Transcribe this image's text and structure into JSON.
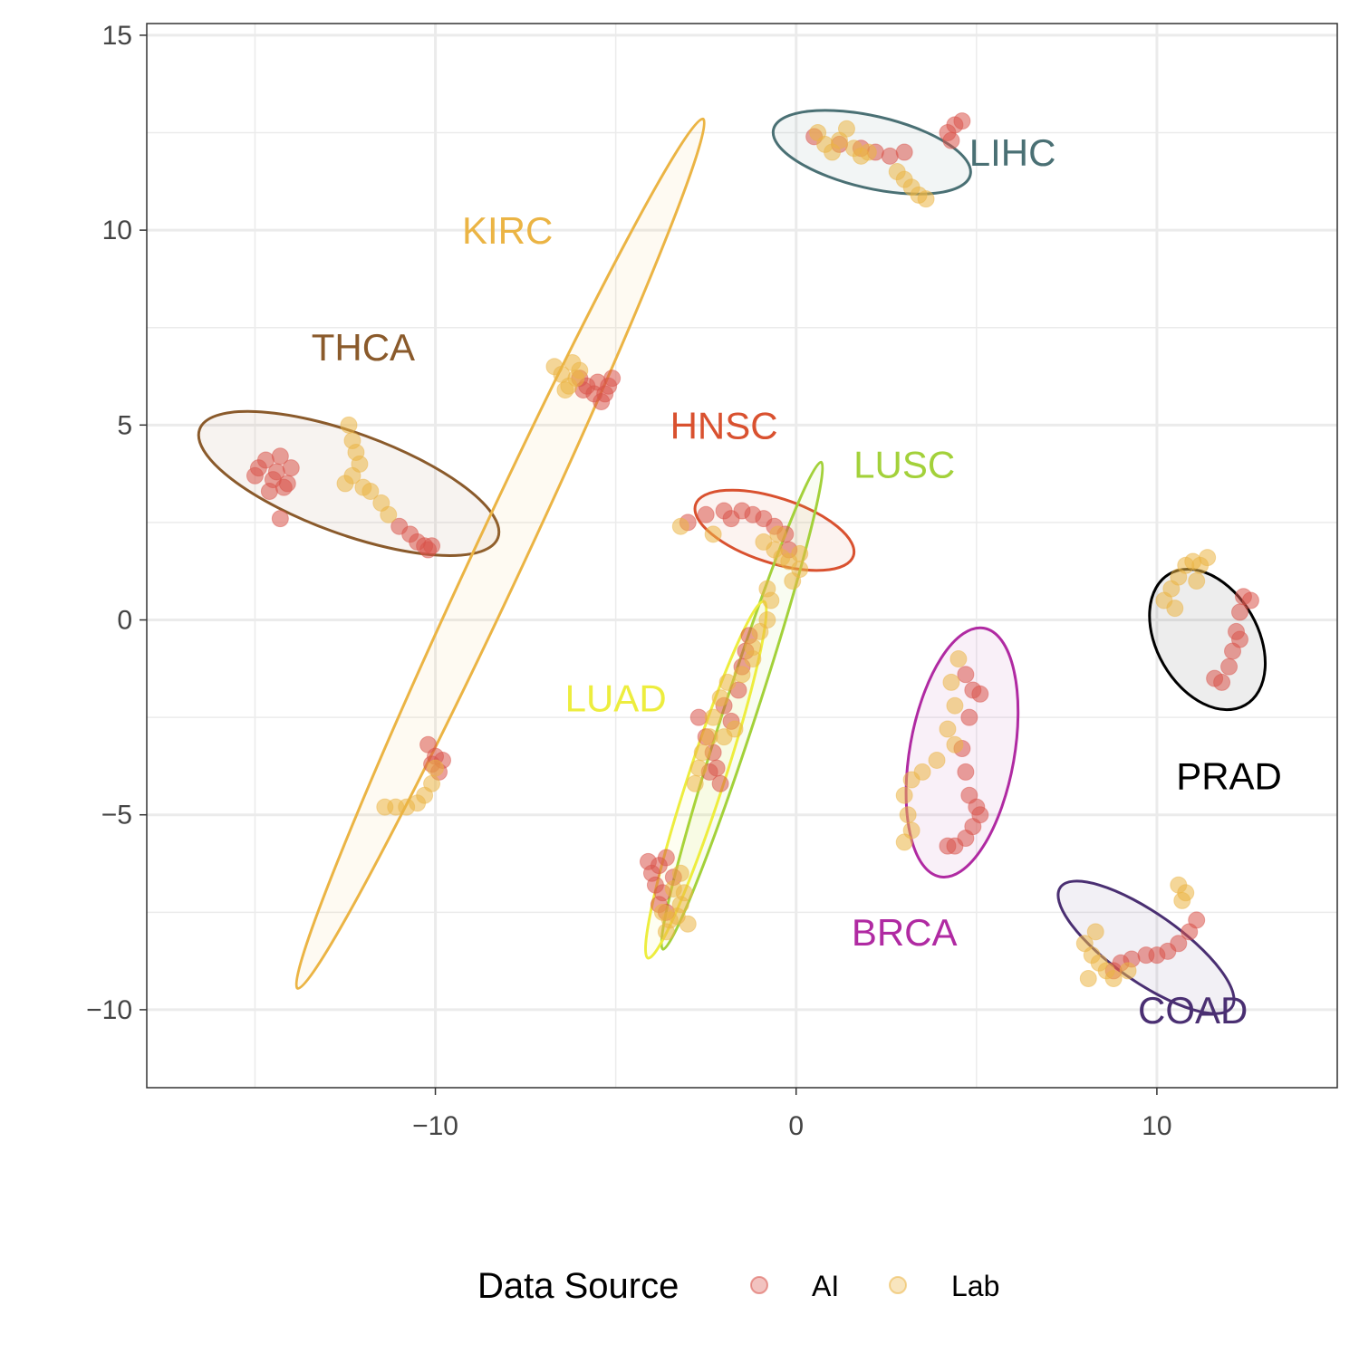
{
  "chart_data": {
    "type": "scatter",
    "title": "",
    "xlabel": "",
    "ylabel": "",
    "xlim": [
      -18,
      15
    ],
    "ylim": [
      -12,
      15.3
    ],
    "x_ticks": [
      -10,
      0,
      10
    ],
    "x_tick_labels": [
      "−10",
      "0",
      "10"
    ],
    "y_ticks": [
      -10,
      -5,
      0,
      5,
      10,
      15
    ],
    "y_tick_labels": [
      "−10",
      "−5",
      "0",
      "5",
      "10",
      "15"
    ],
    "grid": true,
    "legend": {
      "title": "Data Source",
      "position": "bottom",
      "entries": [
        {
          "label": "AI",
          "color": "#d9534a"
        },
        {
          "label": "Lab",
          "color": "#ebb444"
        }
      ]
    },
    "clusters": [
      {
        "name": "THCA",
        "color": "#8a5a2b",
        "ellipse": {
          "cx": -12.4,
          "cy": 3.5,
          "rx": 4.4,
          "ry": 1.4,
          "angle": -20
        },
        "label_pos": [
          -12,
          7
        ]
      },
      {
        "name": "KIRC",
        "color": "#ebb444",
        "ellipse": {
          "cx": -8.2,
          "cy": 1.7,
          "rx": 13.3,
          "ry": 0.7,
          "angle": 65
        },
        "label_pos": [
          -8,
          10
        ]
      },
      {
        "name": "LIHC",
        "color": "#4a7074",
        "ellipse": {
          "cx": 2.1,
          "cy": 12.0,
          "rx": 2.8,
          "ry": 1.0,
          "angle": -13
        },
        "label_pos": [
          6,
          12
        ]
      },
      {
        "name": "HNSC",
        "color": "#d9512f",
        "ellipse": {
          "cx": -0.6,
          "cy": 2.3,
          "rx": 2.3,
          "ry": 0.9,
          "angle": -18
        },
        "label_pos": [
          -2,
          5
        ]
      },
      {
        "name": "LUSC",
        "color": "#a3d13a",
        "ellipse": {
          "cx": -1.5,
          "cy": -2.2,
          "rx": 7.1,
          "ry": 0.45,
          "angle": 72
        },
        "label_pos": [
          3,
          4
        ]
      },
      {
        "name": "LUAD",
        "color": "#eded3e",
        "ellipse": {
          "cx": -2.5,
          "cy": -4.1,
          "rx": 5.2,
          "ry": 0.5,
          "angle": 72
        },
        "label_pos": [
          -5,
          -2
        ]
      },
      {
        "name": "BRCA",
        "color": "#b02aa2",
        "ellipse": {
          "cx": 4.6,
          "cy": -3.4,
          "rx": 3.5,
          "ry": 1.45,
          "angle": 80
        },
        "label_pos": [
          3,
          -8
        ]
      },
      {
        "name": "PRAD",
        "color": "#000000",
        "ellipse": {
          "cx": 11.4,
          "cy": -0.5,
          "rx": 2.1,
          "ry": 1.4,
          "angle": -60
        },
        "label_pos": [
          12,
          -4
        ]
      },
      {
        "name": "COAD",
        "color": "#4a2f72",
        "ellipse": {
          "cx": 9.7,
          "cy": -8.4,
          "rx": 2.9,
          "ry": 0.95,
          "angle": -35
        },
        "label_pos": [
          11,
          -10
        ]
      }
    ],
    "series": [
      {
        "name": "AI",
        "color": "#d9534a",
        "points": [
          [
            -15,
            3.7
          ],
          [
            -14.9,
            3.9
          ],
          [
            -14.7,
            4.1
          ],
          [
            -14.5,
            3.6
          ],
          [
            -14.4,
            3.8
          ],
          [
            -14.3,
            4.2
          ],
          [
            -14.1,
            3.5
          ],
          [
            -14.0,
            3.9
          ],
          [
            -14.6,
            3.3
          ],
          [
            -14.2,
            3.4
          ],
          [
            -14.3,
            2.6
          ],
          [
            -11.0,
            2.4
          ],
          [
            -10.7,
            2.2
          ],
          [
            -10.5,
            2.0
          ],
          [
            -10.3,
            1.9
          ],
          [
            -10.2,
            1.8
          ],
          [
            -10.1,
            1.9
          ],
          [
            -6.0,
            6.2
          ],
          [
            -5.8,
            6.0
          ],
          [
            -5.6,
            5.8
          ],
          [
            -5.5,
            6.1
          ],
          [
            -5.3,
            5.8
          ],
          [
            -5.2,
            6.0
          ],
          [
            -5.4,
            5.6
          ],
          [
            -5.1,
            6.2
          ],
          [
            -5.9,
            5.9
          ],
          [
            -10.2,
            -3.2
          ],
          [
            -10.0,
            -3.5
          ],
          [
            -9.9,
            -3.9
          ],
          [
            -10.1,
            -3.7
          ],
          [
            -9.8,
            -3.6
          ],
          [
            -4.1,
            -6.2
          ],
          [
            -4.0,
            -6.5
          ],
          [
            -3.8,
            -6.3
          ],
          [
            -3.6,
            -6.1
          ],
          [
            -3.9,
            -6.8
          ],
          [
            -3.7,
            -7.0
          ],
          [
            -3.8,
            -7.3
          ],
          [
            -3.6,
            -7.5
          ],
          [
            -3.4,
            -6.6
          ],
          [
            -2.7,
            -2.5
          ],
          [
            -2.5,
            -3.0
          ],
          [
            -2.3,
            -3.4
          ],
          [
            -2.2,
            -3.8
          ],
          [
            -2.1,
            -4.2
          ],
          [
            -2.0,
            -2.2
          ],
          [
            -1.8,
            -2.6
          ],
          [
            -1.6,
            -1.8
          ],
          [
            -1.5,
            -1.2
          ],
          [
            -1.4,
            -0.8
          ],
          [
            -1.3,
            -0.4
          ],
          [
            -2.4,
            -3.9
          ],
          [
            -3.0,
            2.5
          ],
          [
            -2.5,
            2.7
          ],
          [
            -2.0,
            2.8
          ],
          [
            -1.5,
            2.8
          ],
          [
            -1.2,
            2.7
          ],
          [
            -0.9,
            2.6
          ],
          [
            -0.6,
            2.4
          ],
          [
            -0.3,
            2.2
          ],
          [
            -0.2,
            1.8
          ],
          [
            -1.8,
            2.6
          ],
          [
            0.5,
            12.4
          ],
          [
            1.2,
            12.2
          ],
          [
            1.8,
            12.1
          ],
          [
            2.2,
            12.0
          ],
          [
            2.6,
            11.9
          ],
          [
            3.0,
            12.0
          ],
          [
            4.2,
            12.5
          ],
          [
            4.4,
            12.7
          ],
          [
            4.6,
            12.8
          ],
          [
            4.3,
            12.3
          ],
          [
            4.7,
            -1.4
          ],
          [
            4.9,
            -1.8
          ],
          [
            5.1,
            -1.9
          ],
          [
            4.8,
            -2.5
          ],
          [
            4.6,
            -3.3
          ],
          [
            4.7,
            -3.9
          ],
          [
            4.8,
            -4.5
          ],
          [
            5.0,
            -4.8
          ],
          [
            4.9,
            -5.3
          ],
          [
            4.7,
            -5.6
          ],
          [
            4.4,
            -5.8
          ],
          [
            4.2,
            -5.8
          ],
          [
            5.1,
            -5.0
          ],
          [
            11.8,
            -1.6
          ],
          [
            12.0,
            -1.2
          ],
          [
            12.1,
            -0.8
          ],
          [
            12.2,
            -0.3
          ],
          [
            12.3,
            0.2
          ],
          [
            12.4,
            0.6
          ],
          [
            12.6,
            0.5
          ],
          [
            11.6,
            -1.5
          ],
          [
            12.3,
            -0.5
          ],
          [
            9.0,
            -8.8
          ],
          [
            9.3,
            -8.7
          ],
          [
            9.7,
            -8.6
          ],
          [
            10.0,
            -8.6
          ],
          [
            10.3,
            -8.5
          ],
          [
            10.6,
            -8.3
          ],
          [
            10.9,
            -8.0
          ],
          [
            11.1,
            -7.7
          ],
          [
            8.8,
            -9.0
          ]
        ]
      },
      {
        "name": "Lab",
        "color": "#ebb444",
        "points": [
          [
            -12.4,
            5.0
          ],
          [
            -12.3,
            4.6
          ],
          [
            -12.2,
            4.3
          ],
          [
            -12.1,
            4.0
          ],
          [
            -12.3,
            3.7
          ],
          [
            -12.0,
            3.4
          ],
          [
            -11.8,
            3.3
          ],
          [
            -12.5,
            3.5
          ],
          [
            -11.5,
            3.0
          ],
          [
            -11.3,
            2.7
          ],
          [
            -6.7,
            6.5
          ],
          [
            -6.5,
            6.3
          ],
          [
            -6.3,
            6.0
          ],
          [
            -6.2,
            6.6
          ],
          [
            -6.0,
            6.4
          ],
          [
            -6.4,
            5.9
          ],
          [
            -6.1,
            6.2
          ],
          [
            -11.4,
            -4.8
          ],
          [
            -11.1,
            -4.8
          ],
          [
            -10.8,
            -4.8
          ],
          [
            -10.5,
            -4.7
          ],
          [
            -10.3,
            -4.5
          ],
          [
            -10.1,
            -4.2
          ],
          [
            -10.0,
            -3.8
          ],
          [
            -3.7,
            -7.5
          ],
          [
            -3.5,
            -7.7
          ],
          [
            -3.3,
            -7.6
          ],
          [
            -3.2,
            -7.3
          ],
          [
            -3.1,
            -7.0
          ],
          [
            -3.4,
            -6.9
          ],
          [
            -3.0,
            -7.8
          ],
          [
            -3.6,
            -8.0
          ],
          [
            -3.2,
            -6.5
          ],
          [
            -2.8,
            -4.2
          ],
          [
            -2.6,
            -3.4
          ],
          [
            -2.4,
            -3.0
          ],
          [
            -2.3,
            -2.5
          ],
          [
            -2.1,
            -2.0
          ],
          [
            -1.9,
            -1.6
          ],
          [
            -1.7,
            -2.8
          ],
          [
            -1.5,
            -1.4
          ],
          [
            -1.2,
            -0.7
          ],
          [
            -1.0,
            -0.3
          ],
          [
            -0.8,
            0.0
          ],
          [
            -0.7,
            0.5
          ],
          [
            -0.8,
            0.8
          ],
          [
            -2.7,
            -3.8
          ],
          [
            -2.0,
            -3.0
          ],
          [
            -1.2,
            -1.0
          ],
          [
            -3.2,
            2.4
          ],
          [
            -2.3,
            2.2
          ],
          [
            -0.9,
            2.0
          ],
          [
            -0.6,
            1.8
          ],
          [
            -0.4,
            1.6
          ],
          [
            -0.2,
            1.5
          ],
          [
            0.1,
            1.7
          ],
          [
            0.1,
            1.3
          ],
          [
            -0.1,
            1.0
          ],
          [
            -0.5,
            2.2
          ],
          [
            0.6,
            12.5
          ],
          [
            0.8,
            12.2
          ],
          [
            1.0,
            12.0
          ],
          [
            1.2,
            12.3
          ],
          [
            1.4,
            12.6
          ],
          [
            1.6,
            12.1
          ],
          [
            1.8,
            11.9
          ],
          [
            2.0,
            12.0
          ],
          [
            2.8,
            11.5
          ],
          [
            3.0,
            11.3
          ],
          [
            3.2,
            11.1
          ],
          [
            3.4,
            10.9
          ],
          [
            3.6,
            10.8
          ],
          [
            4.5,
            -1.0
          ],
          [
            4.3,
            -1.6
          ],
          [
            4.4,
            -2.2
          ],
          [
            4.2,
            -2.8
          ],
          [
            4.4,
            -3.2
          ],
          [
            3.9,
            -3.6
          ],
          [
            3.5,
            -3.9
          ],
          [
            3.2,
            -4.1
          ],
          [
            3.0,
            -4.5
          ],
          [
            3.1,
            -5.0
          ],
          [
            3.2,
            -5.4
          ],
          [
            3.0,
            -5.7
          ],
          [
            10.2,
            0.5
          ],
          [
            10.4,
            0.8
          ],
          [
            10.6,
            1.1
          ],
          [
            10.8,
            1.4
          ],
          [
            11.0,
            1.5
          ],
          [
            11.2,
            1.4
          ],
          [
            11.4,
            1.6
          ],
          [
            10.5,
            0.3
          ],
          [
            11.1,
            1.0
          ],
          [
            8.0,
            -8.3
          ],
          [
            8.2,
            -8.6
          ],
          [
            8.4,
            -8.8
          ],
          [
            8.6,
            -9.0
          ],
          [
            8.8,
            -9.2
          ],
          [
            8.3,
            -8.0
          ],
          [
            9.2,
            -9.0
          ],
          [
            8.1,
            -9.2
          ],
          [
            10.7,
            -7.2
          ],
          [
            10.6,
            -6.8
          ],
          [
            10.8,
            -7.0
          ]
        ]
      }
    ]
  }
}
